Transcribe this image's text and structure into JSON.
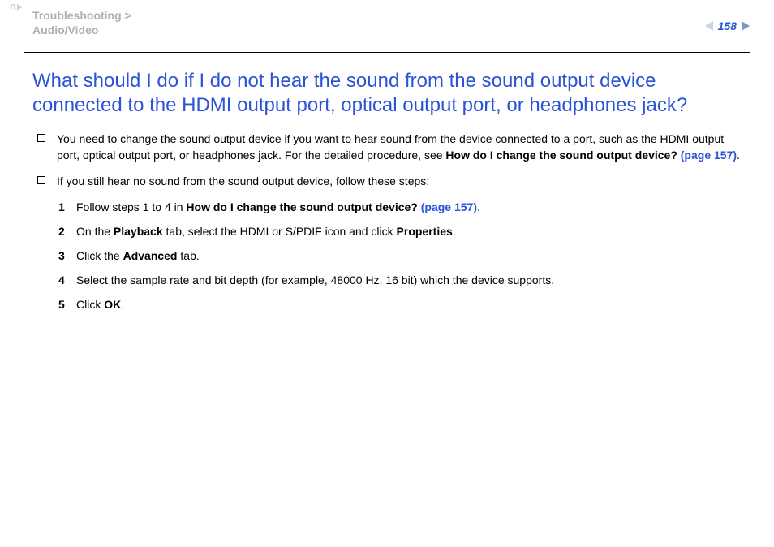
{
  "header": {
    "breadcrumb_line1": "Troubleshooting >",
    "breadcrumb_line2": "Audio/Video",
    "page_number": "158",
    "top_marker": "n"
  },
  "title": "What should I do if I do not hear the sound from the sound output device connected to the HDMI output port, optical output port, or headphones jack?",
  "bullet1": {
    "pre": "You need to change the sound output device if you want to hear sound from the device connected to a port, such as the HDMI output port, optical output port, or headphones jack. For the detailed procedure, see ",
    "bold": "How do I change the sound output device?",
    "link": " (page 157)",
    "post": "."
  },
  "bullet2": {
    "text": "If you still hear no sound from the sound output device, follow these steps:"
  },
  "steps": [
    {
      "n": "1",
      "pre": "Follow steps 1 to 4 in ",
      "bold": "How do I change the sound output device?",
      "link": " (page 157)",
      "post": "."
    },
    {
      "n": "2",
      "pre": "On the ",
      "b1": "Playback",
      "mid": " tab, select the HDMI or S/PDIF icon and click ",
      "b2": "Properties",
      "post": "."
    },
    {
      "n": "3",
      "pre": "Click the ",
      "b1": "Advanced",
      "post": " tab."
    },
    {
      "n": "4",
      "pre": "Select the sample rate and bit depth (for example, 48000 Hz, 16 bit) which the device supports."
    },
    {
      "n": "5",
      "pre": "Click ",
      "b1": "OK",
      "post": "."
    }
  ],
  "colors": {
    "link_blue": "#2b53d6",
    "grey_text": "#b0b0b0",
    "arrow_light": "#c8d4e8",
    "arrow_dark": "#7a9ac9"
  }
}
